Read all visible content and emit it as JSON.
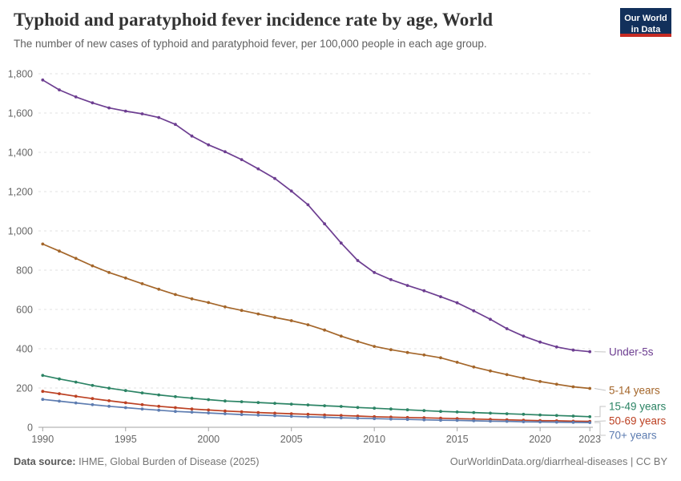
{
  "header": {
    "title": "Typhoid and paratyphoid fever incidence rate by age, World",
    "subtitle": "The number of new cases of typhoid and paratyphoid fever, per 100,000 people in each age group.",
    "logo": {
      "line1": "Our World",
      "line2": "in Data",
      "bg_color": "#12305B",
      "accent_color": "#C62A22"
    }
  },
  "chart_data": {
    "type": "line",
    "title": "Typhoid and paratyphoid fever incidence rate by age, World",
    "xlabel": "",
    "ylabel": "",
    "grid": true,
    "legend_position": "right-end-labels",
    "ylim": [
      0,
      1800
    ],
    "yticks": [
      0,
      200,
      400,
      600,
      800,
      1000,
      1200,
      1400,
      1600,
      1800
    ],
    "xticks": [
      1990,
      1995,
      2000,
      2005,
      2010,
      2015,
      2020,
      2023
    ],
    "x": [
      1990,
      1991,
      1992,
      1993,
      1994,
      1995,
      1996,
      1997,
      1998,
      1999,
      2000,
      2001,
      2002,
      2003,
      2004,
      2005,
      2006,
      2007,
      2008,
      2009,
      2010,
      2011,
      2012,
      2013,
      2014,
      2015,
      2016,
      2017,
      2018,
      2019,
      2020,
      2021,
      2022,
      2023
    ],
    "series": [
      {
        "name": "Under-5s",
        "color": "#6D3E91",
        "values": [
          1768,
          1718,
          1682,
          1652,
          1626,
          1610,
          1596,
          1577,
          1542,
          1483,
          1438,
          1403,
          1363,
          1316,
          1267,
          1203,
          1133,
          1036,
          938,
          849,
          788,
          752,
          722,
          695,
          665,
          634,
          593,
          550,
          502,
          464,
          434,
          409,
          393,
          385
        ]
      },
      {
        "name": "5-14 years",
        "color": "#A4662A",
        "values": [
          933,
          897,
          860,
          822,
          788,
          760,
          731,
          703,
          676,
          654,
          635,
          613,
          595,
          577,
          559,
          543,
          522,
          495,
          464,
          437,
          412,
          395,
          381,
          368,
          354,
          331,
          307,
          287,
          268,
          250,
          233,
          219,
          206,
          198
        ]
      },
      {
        "name": "15-49 years",
        "color": "#2C8465",
        "values": [
          264,
          246,
          230,
          213,
          199,
          187,
          175,
          165,
          156,
          148,
          141,
          134,
          130,
          126,
          122,
          118,
          114,
          110,
          106,
          101,
          97,
          93,
          89,
          85,
          81,
          78,
          75,
          72,
          69,
          66,
          63,
          60,
          57,
          54
        ]
      },
      {
        "name": "50-69 years",
        "color": "#BC4123",
        "values": [
          183,
          171,
          158,
          146,
          135,
          125,
          115,
          107,
          100,
          93,
          88,
          83,
          79,
          75,
          72,
          69,
          66,
          63,
          60,
          57,
          54,
          52,
          50,
          48,
          46,
          44,
          42,
          40,
          38,
          36,
          34,
          33,
          31,
          30
        ]
      },
      {
        "name": "70+ years",
        "color": "#5E7DB1",
        "values": [
          142,
          133,
          124,
          115,
          107,
          100,
          93,
          87,
          81,
          77,
          73,
          69,
          65,
          62,
          59,
          56,
          53,
          51,
          48,
          46,
          44,
          42,
          40,
          38,
          36,
          35,
          33,
          31,
          30,
          28,
          27,
          26,
          25,
          24
        ]
      }
    ],
    "axis_colors": {
      "grid": "#e0e0e0",
      "axis": "#a3a3a3",
      "tick_label": "#666666"
    }
  },
  "footer": {
    "source_label": "Data source:",
    "source_text": " IHME, Global Burden of Disease (2025)",
    "link_text": "OurWorldinData.org/diarrheal-diseases | CC BY"
  }
}
